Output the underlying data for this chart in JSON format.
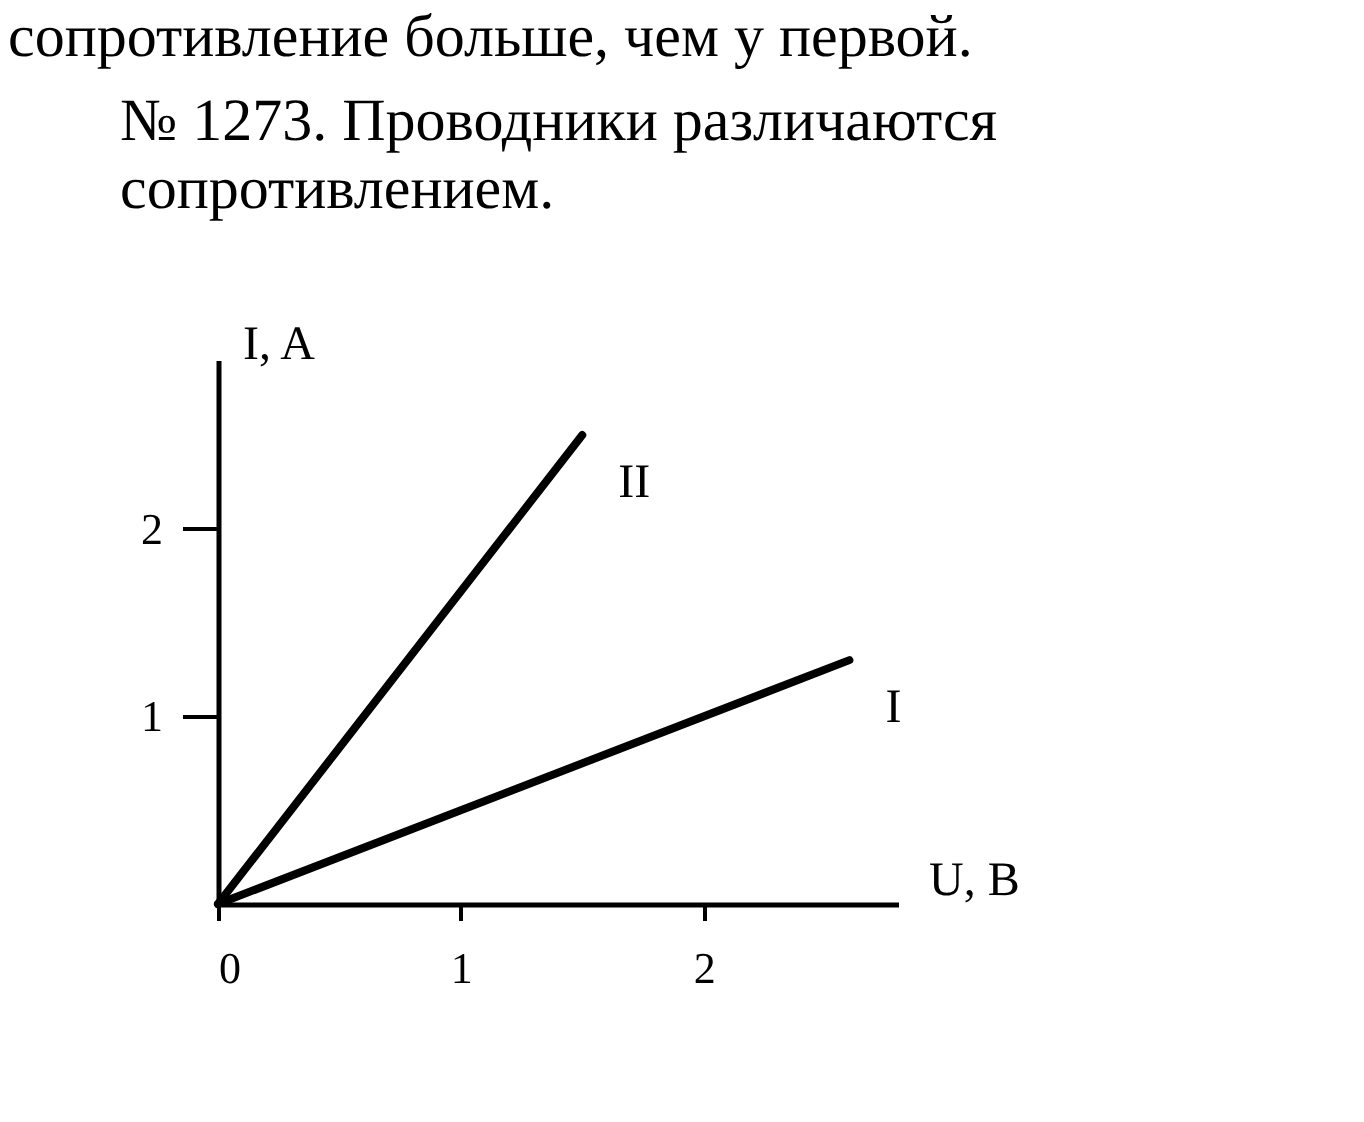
{
  "chart_data": {
    "type": "line",
    "title": "№ 1273. Проводники различаются сопротивлением.",
    "annotations": [
      "сопротивление больше, чем у первой."
    ],
    "xlabel": "U, B",
    "ylabel": "I, A",
    "xlim": [
      0,
      2.8
    ],
    "ylim": [
      0,
      2.9
    ],
    "xticks": [
      0,
      1,
      2
    ],
    "yticks": [
      1,
      2
    ],
    "grid": false,
    "legend": false,
    "marker": "none",
    "line_style": "solid",
    "series": [
      {
        "name": "II",
        "color": "#000000",
        "x": [
          0,
          1.5
        ],
        "values": [
          0,
          2.5
        ]
      },
      {
        "name": "I",
        "color": "#000000",
        "x": [
          0,
          2.6
        ],
        "values": [
          0,
          1.3
        ]
      }
    ]
  }
}
